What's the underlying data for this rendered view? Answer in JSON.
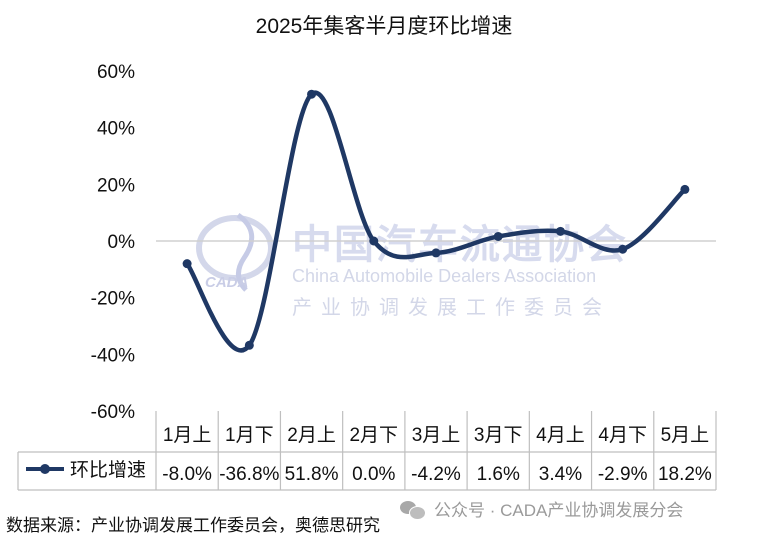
{
  "chart_data": {
    "type": "line",
    "title": "2025年集客半月度环比增速",
    "categories": [
      "1月上",
      "1月下",
      "2月上",
      "2月下",
      "3月上",
      "3月下",
      "4月上",
      "4月下",
      "5月上"
    ],
    "series": [
      {
        "name": "环比增速",
        "values": [
          -8.0,
          -36.8,
          51.8,
          0.0,
          -4.2,
          1.6,
          3.4,
          -2.9,
          18.2
        ],
        "labels": [
          "-8.0%",
          "-36.8%",
          "51.8%",
          "0.0%",
          "-4.2%",
          "1.6%",
          "3.4%",
          "-2.9%",
          "18.2%"
        ],
        "color": "#1f3864"
      }
    ],
    "yticks": [
      "60%",
      "40%",
      "20%",
      "0%",
      "-20%",
      "-40%",
      "-60%"
    ],
    "ylim": [
      -60,
      60
    ],
    "legend": "data-table",
    "smooth": true,
    "grid": false
  },
  "watermark": {
    "cn": "中国汽车流通协会",
    "en": "China Automobile Dealers Association",
    "cn2": "产业协调发展工作委员会",
    "logo": "CADA"
  },
  "footer": {
    "source": "数据来源：产业协调发展工作委员会，奥德思研究",
    "wechat": "公众号 · CADA产业协调发展分会"
  },
  "icons": {
    "legend": "line-marker-icon",
    "wechat": "wechat-icon"
  }
}
